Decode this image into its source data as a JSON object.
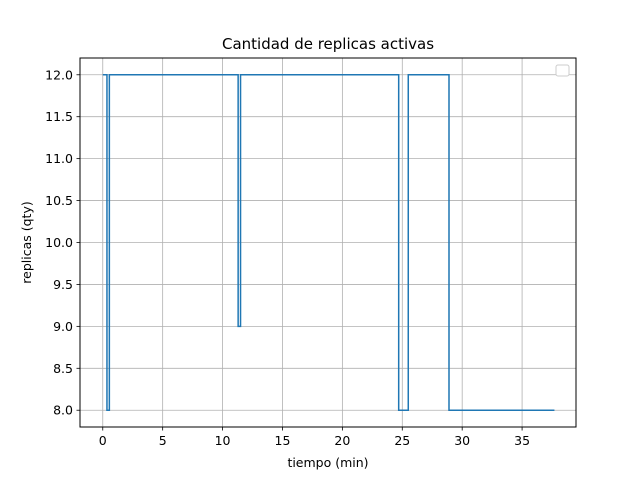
{
  "chart_data": {
    "type": "line",
    "title": "Cantidad de replicas activas",
    "xlabel": "tiempo (min)",
    "ylabel": "replicas (qty)",
    "xlim": [
      -1.9,
      39.5
    ],
    "ylim": [
      7.8,
      12.2
    ],
    "xticks": [
      0,
      5,
      10,
      15,
      20,
      25,
      30,
      35
    ],
    "xtick_labels": [
      "0",
      "5",
      "10",
      "15",
      "20",
      "25",
      "30",
      "35"
    ],
    "yticks": [
      8.0,
      8.5,
      9.0,
      9.5,
      10.0,
      10.5,
      11.0,
      11.5,
      12.0
    ],
    "ytick_labels": [
      "8.0",
      "8.5",
      "9.0",
      "9.5",
      "10.0",
      "10.5",
      "11.0",
      "11.5",
      "12.0"
    ],
    "grid": true,
    "legend": "top-right",
    "line_color": "#1f77b4",
    "series": [
      {
        "x": [
          0.0,
          0.35,
          0.35,
          0.55,
          0.55,
          11.3,
          11.3,
          11.5,
          11.5,
          24.7,
          24.7,
          25.5,
          25.5,
          28.9,
          28.9,
          37.7
        ],
        "values": [
          12,
          12,
          8,
          8,
          12,
          12,
          9,
          9,
          12,
          12,
          8,
          8,
          12,
          12,
          8,
          8
        ]
      }
    ]
  }
}
